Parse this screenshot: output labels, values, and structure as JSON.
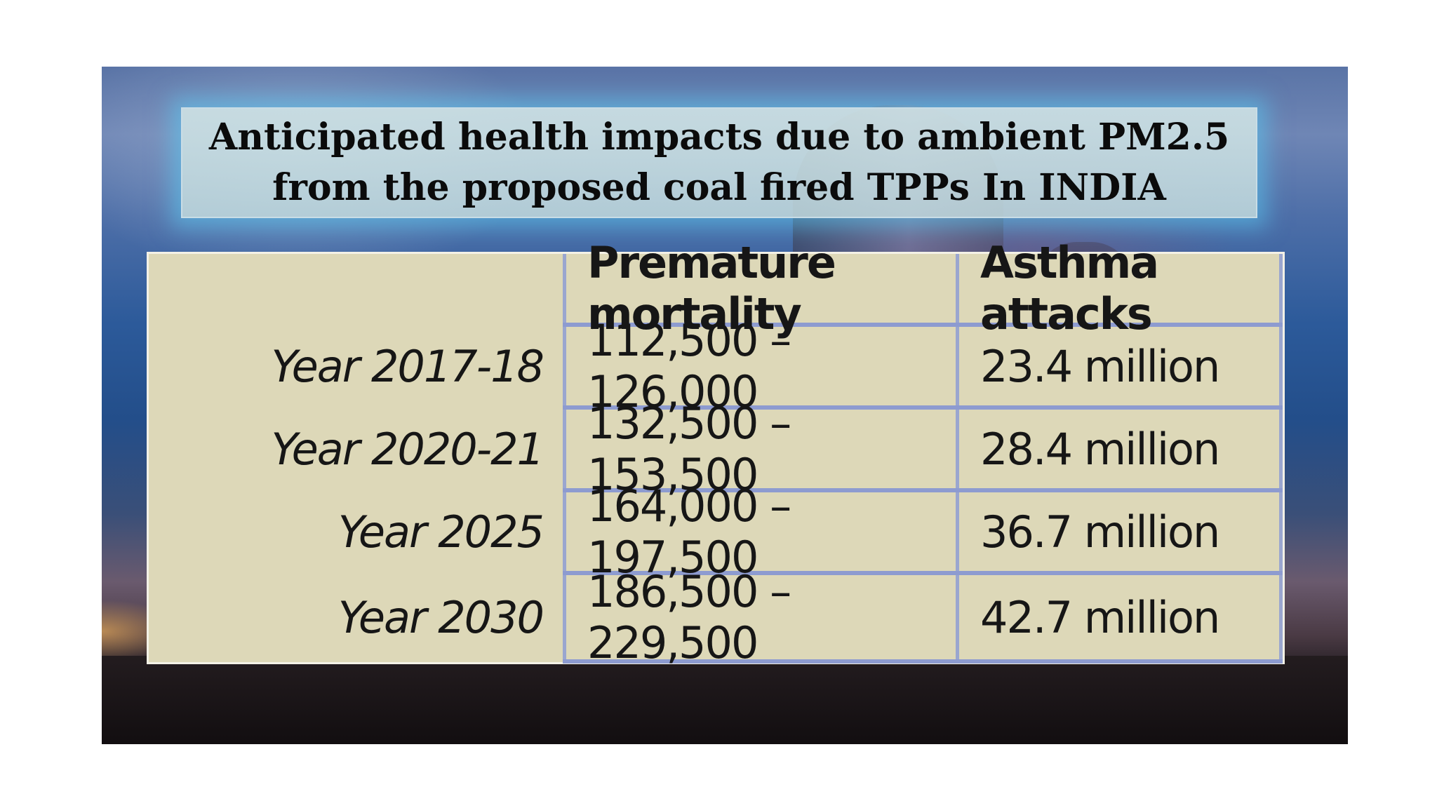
{
  "slide": {
    "title": "Anticipated health impacts due to ambient PM2.5 from the proposed coal fired TPPs In INDIA"
  },
  "table": {
    "headers": [
      "",
      "Premature mortality",
      "Asthma attacks"
    ],
    "rows": [
      {
        "label": "Year 2017-18",
        "mortality": "112,500 – 126,000",
        "asthma": "23.4 million"
      },
      {
        "label": "Year 2020-21",
        "mortality": "132,500 – 153,500",
        "asthma": "28.4 million"
      },
      {
        "label": "Year 2025",
        "mortality": "164,000 – 197,500",
        "asthma": "36.7 million"
      },
      {
        "label": "Year 2030",
        "mortality": "186,500 – 229,500",
        "asthma": "42.7 million"
      }
    ]
  },
  "colors": {
    "title_glow": "#5ac8f0",
    "table_bg": "#ddd8b8",
    "table_rule": "#8d9bd0"
  }
}
